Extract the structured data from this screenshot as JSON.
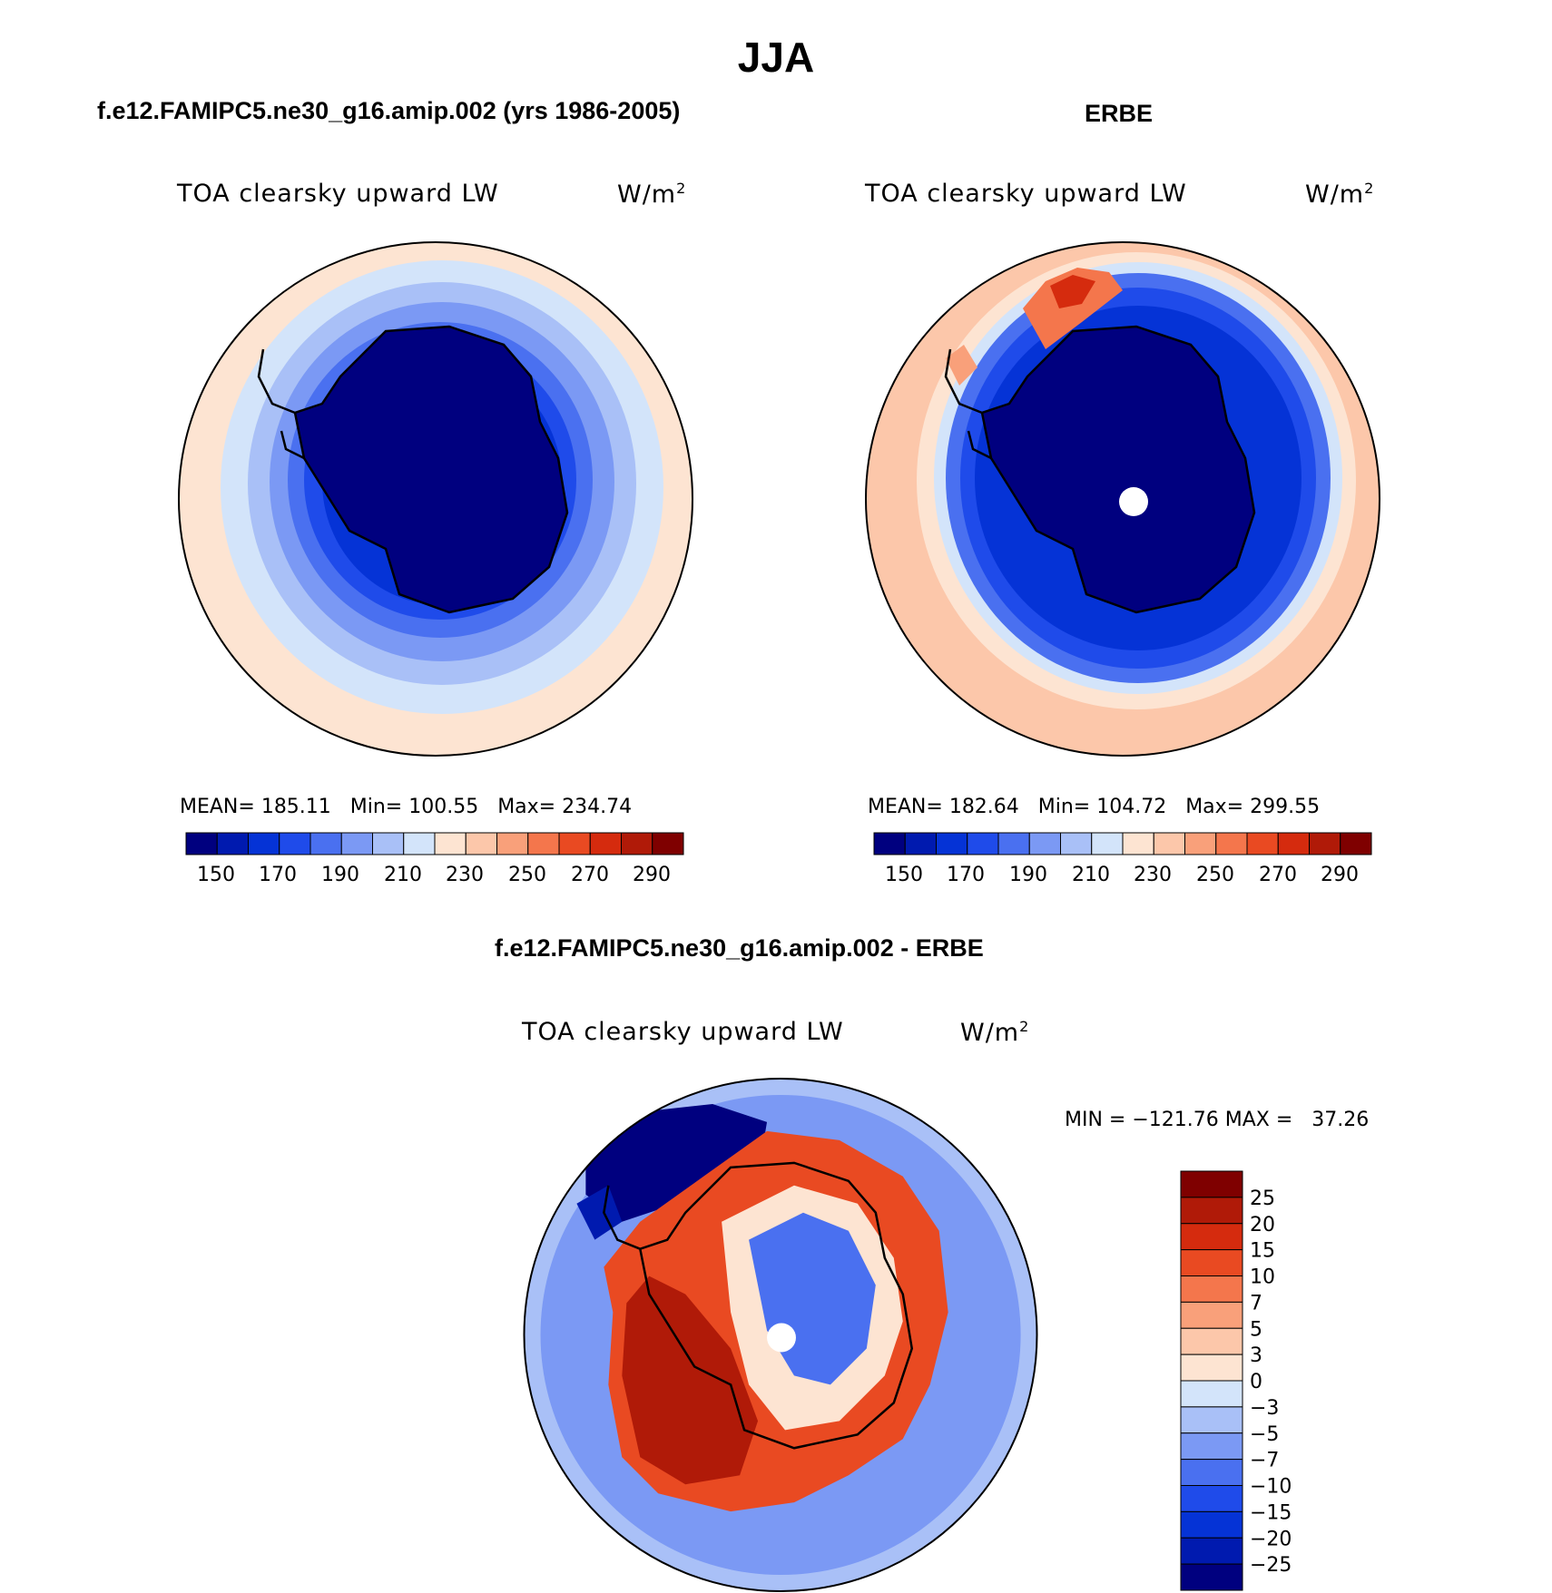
{
  "title": "JJA",
  "units_base": "W/m",
  "units_exp": "2",
  "model_panel": {
    "heading": "f.e12.FAMIPC5.ne30_g16.amip.002 (yrs 1986-2005)",
    "variable": "TOA clearsky upward LW",
    "stats": "MEAN= 185.11   Min= 100.55   Max= 234.74"
  },
  "obs_panel": {
    "heading": "ERBE",
    "variable": "TOA clearsky upward LW",
    "stats": "MEAN= 182.64   Min= 104.72   Max= 299.55"
  },
  "diff_panel": {
    "heading": "f.e12.FAMIPC5.ne30_g16.amip.002 - ERBE",
    "variable": "TOA clearsky upward LW",
    "stats": "MIN = −121.76 MAX =   37.26"
  },
  "abs_colorbar": {
    "tick_labels": [
      "150",
      "170",
      "190",
      "210",
      "230",
      "250",
      "270",
      "290"
    ],
    "colors": [
      "#00007f",
      "#001aaf",
      "#0533d6",
      "#1f4bea",
      "#4a70f0",
      "#7b99f4",
      "#a9c0f7",
      "#d3e4fa",
      "#fde4d2",
      "#fcc7aa",
      "#f9a07a",
      "#f4764c",
      "#e94a22",
      "#d52b0e",
      "#b01a08",
      "#7f0000"
    ]
  },
  "diff_colorbar": {
    "labels": [
      "25",
      "20",
      "15",
      "10",
      "7",
      "5",
      "3",
      "0",
      "−3",
      "−5",
      "−7",
      "−10",
      "−15",
      "−20",
      "−25"
    ],
    "colors": [
      "#7f0000",
      "#b01a08",
      "#d52b0e",
      "#e94a22",
      "#f4764c",
      "#f9a07a",
      "#fcc7aa",
      "#fde4d2",
      "#d3e4fa",
      "#a9c0f7",
      "#7b99f4",
      "#4a70f0",
      "#1f4bea",
      "#0533d6",
      "#001aaf",
      "#00007f"
    ]
  }
}
